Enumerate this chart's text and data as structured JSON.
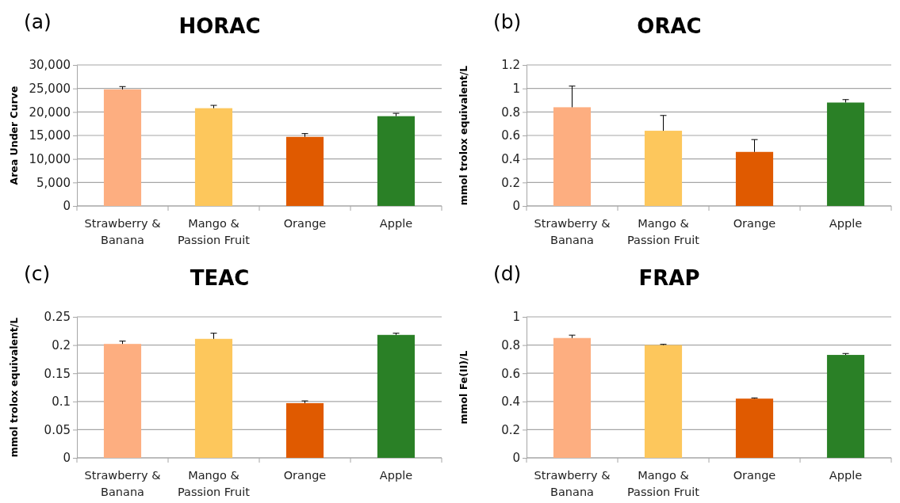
{
  "chart_data": [
    {
      "type": "bar",
      "title": "HORAC",
      "ylabel": "Area Under Curve",
      "annotations": [
        "(a)"
      ],
      "categories": [
        "Strawberry & Banana",
        "Mango & Passion Fruit",
        "Orange",
        "Apple"
      ],
      "values": [
        24800,
        20800,
        14700,
        19100
      ],
      "errors": [
        [
          24800,
          25400
        ],
        [
          20800,
          21400
        ],
        [
          14700,
          15400
        ],
        [
          19100,
          19700
        ]
      ],
      "colors": [
        "#fdae80",
        "#fdc75c",
        "#e05a00",
        "#2a8026"
      ],
      "ylim": [
        0,
        30000
      ],
      "yticks": [
        {
          "value": 0,
          "label": "0"
        },
        {
          "value": 5000,
          "label": "5,000"
        },
        {
          "value": 10000,
          "label": "10,000"
        },
        {
          "value": 15000,
          "label": "15,000"
        },
        {
          "value": 20000,
          "label": "20,000"
        },
        {
          "value": 25000,
          "label": "25,000"
        },
        {
          "value": 30000,
          "label": "30,000"
        }
      ],
      "grid": "y"
    },
    {
      "type": "bar",
      "title": "ORAC",
      "ylabel": "mmol trolox equivalent/L",
      "annotations": [
        "(b)"
      ],
      "categories": [
        "Strawberry & Banana",
        "Mango & Passion Fruit",
        "Orange",
        "Apple"
      ],
      "values": [
        0.84,
        0.64,
        0.46,
        0.88
      ],
      "errors": [
        [
          0.84,
          1.02
        ],
        [
          0.64,
          0.77
        ],
        [
          0.46,
          0.565
        ],
        [
          0.88,
          0.905
        ]
      ],
      "colors": [
        "#fdae80",
        "#fdc75c",
        "#e05a00",
        "#2a8026"
      ],
      "ylim": [
        0,
        1.2
      ],
      "yticks": [
        0,
        0.2,
        0.4,
        0.6,
        0.8,
        1,
        1.2
      ],
      "grid": "y"
    },
    {
      "type": "bar",
      "title": "TEAC",
      "ylabel": "mmol trolox equivalent/L",
      "annotations": [
        "(c)"
      ],
      "categories": [
        "Strawberry & Banana",
        "Mango & Passion Fruit",
        "Orange",
        "Apple"
      ],
      "values": [
        0.202,
        0.211,
        0.097,
        0.218
      ],
      "errors": [
        [
          0.202,
          0.207
        ],
        [
          0.211,
          0.221
        ],
        [
          0.097,
          0.101
        ],
        [
          0.218,
          0.221
        ]
      ],
      "colors": [
        "#fdae80",
        "#fdc75c",
        "#e05a00",
        "#2a8026"
      ],
      "ylim": [
        0,
        0.25
      ],
      "yticks": [
        0,
        0.05,
        0.1,
        0.15,
        0.2,
        0.25
      ],
      "grid": "y"
    },
    {
      "type": "bar",
      "title": "FRAP",
      "ylabel": "mmol Fe(II)/L",
      "annotations": [
        "(d)"
      ],
      "categories": [
        "Strawberry & Banana",
        "Mango & Passion Fruit",
        "Orange",
        "Apple"
      ],
      "values": [
        0.85,
        0.8,
        0.42,
        0.73
      ],
      "errors": [
        [
          0.85,
          0.87
        ],
        [
          0.8,
          0.805
        ],
        [
          0.42,
          0.425
        ],
        [
          0.73,
          0.74
        ]
      ],
      "colors": [
        "#fdae80",
        "#fdc75c",
        "#e05a00",
        "#2a8026"
      ],
      "ylim": [
        0,
        1
      ],
      "yticks": [
        0,
        0.2,
        0.4,
        0.6,
        0.8,
        1
      ],
      "grid": "y"
    }
  ]
}
